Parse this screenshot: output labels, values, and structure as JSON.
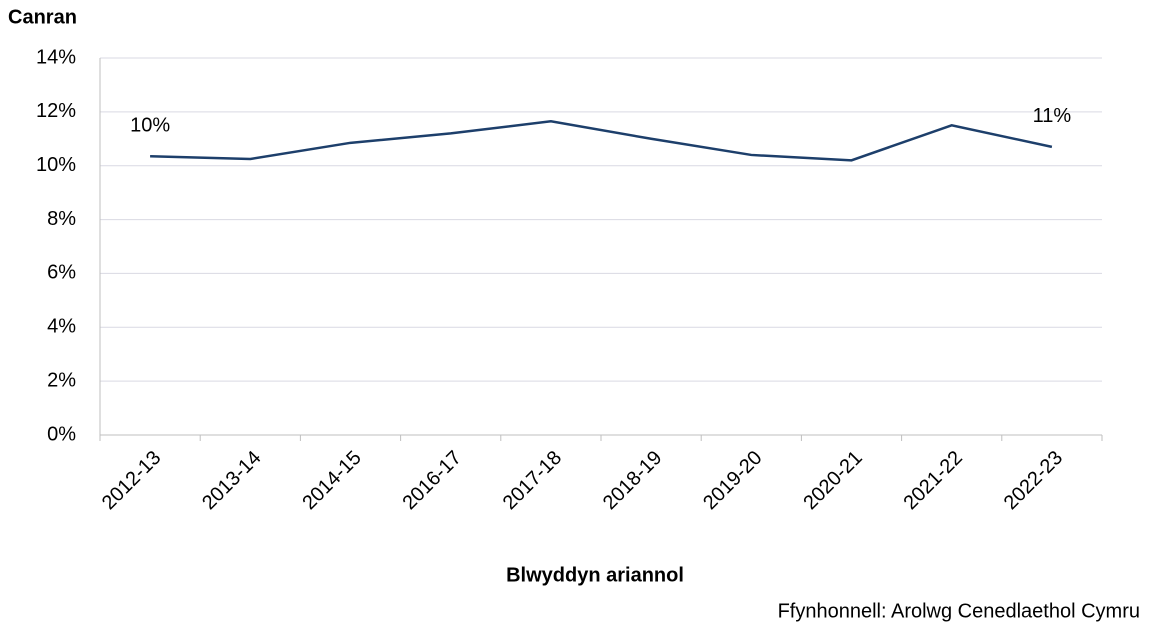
{
  "chart_data": {
    "type": "line",
    "y_axis_label": "Canran",
    "x_axis_label": "Blwyddyn ariannol",
    "source": "Ffynhonnell: Arolwg Cenedlaethol Cymru",
    "categories": [
      "2012-13",
      "2013-14",
      "2014-15",
      "2016-17",
      "2017-18",
      "2018-19",
      "2019-20",
      "2020-21",
      "2021-22",
      "2022-23"
    ],
    "series": [
      {
        "name": "Canran",
        "color": "#1d3f6b",
        "values": [
          10.35,
          10.25,
          10.85,
          11.2,
          11.65,
          11.0,
          10.4,
          10.2,
          11.5,
          10.7
        ],
        "value_labels": [
          "10%",
          null,
          null,
          null,
          null,
          null,
          null,
          null,
          null,
          "11%"
        ]
      }
    ],
    "ylim": [
      0,
      14
    ],
    "yticks": [
      {
        "value": 0,
        "label": "0%"
      },
      {
        "value": 2,
        "label": "2%"
      },
      {
        "value": 4,
        "label": "4%"
      },
      {
        "value": 6,
        "label": "6%"
      },
      {
        "value": 8,
        "label": "8%"
      },
      {
        "value": 10,
        "label": "10%"
      },
      {
        "value": 12,
        "label": "12%"
      },
      {
        "value": 14,
        "label": "14%"
      }
    ],
    "grid": true
  }
}
